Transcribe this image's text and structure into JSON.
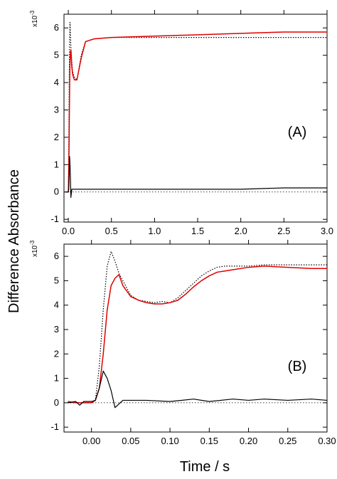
{
  "figure": {
    "ylabel": "Difference Absorbance",
    "xlabel": "Time / s"
  },
  "chart_data": [
    {
      "type": "line",
      "panel_label": "(A)",
      "y_multiplier": "x10",
      "y_exponent": "-3",
      "xlim": [
        -0.05,
        3.0
      ],
      "ylim": [
        -1.1,
        6.5
      ],
      "x_ticks": [
        0.0,
        0.5,
        1.0,
        1.5,
        2.0,
        2.5,
        3.0
      ],
      "x_tick_labels": [
        "0.0",
        "0.5",
        "1.0",
        "1.5",
        "2.0",
        "2.5",
        "3.0"
      ],
      "y_ticks": [
        -1,
        0,
        1,
        2,
        3,
        4,
        5,
        6
      ],
      "y_tick_labels": [
        "-1",
        "0",
        "1",
        "2",
        "3",
        "4",
        "5",
        "6"
      ],
      "grid": false,
      "series": [
        {
          "style": "dotted",
          "color": "#000000",
          "x": [
            -0.03,
            0.0,
            0.005,
            0.01,
            0.015,
            0.02,
            0.025,
            0.03,
            0.04,
            0.05,
            0.07,
            0.1,
            0.15,
            0.2,
            0.3,
            0.5,
            1.0,
            1.5,
            2.0,
            2.5,
            3.0
          ],
          "y": [
            0.0,
            0.0,
            1.5,
            3.8,
            5.6,
            6.2,
            5.8,
            5.3,
            4.8,
            4.4,
            4.2,
            4.1,
            5.0,
            5.5,
            5.6,
            5.65,
            5.65,
            5.65,
            5.65,
            5.65,
            5.65
          ]
        },
        {
          "style": "solid",
          "color": "#e00000",
          "x": [
            -0.03,
            0.0,
            0.005,
            0.01,
            0.015,
            0.02,
            0.025,
            0.03,
            0.04,
            0.05,
            0.07,
            0.1,
            0.15,
            0.2,
            0.3,
            0.5,
            1.0,
            1.5,
            2.0,
            2.5,
            3.0
          ],
          "y": [
            0.0,
            0.0,
            0.6,
            2.0,
            3.8,
            4.8,
            5.1,
            5.2,
            4.6,
            4.3,
            4.1,
            4.1,
            4.9,
            5.5,
            5.6,
            5.65,
            5.7,
            5.75,
            5.8,
            5.85,
            5.85
          ]
        },
        {
          "style": "solid",
          "color": "#000000",
          "x": [
            -0.03,
            0.0,
            0.005,
            0.01,
            0.015,
            0.02,
            0.025,
            0.03,
            0.04,
            0.05,
            0.1,
            0.5,
            1.0,
            1.5,
            2.0,
            2.5,
            3.0
          ],
          "y": [
            0.0,
            0.0,
            0.1,
            0.6,
            1.3,
            1.0,
            0.5,
            -0.2,
            0.1,
            0.1,
            0.1,
            0.1,
            0.1,
            0.1,
            0.1,
            0.15,
            0.15
          ]
        }
      ]
    },
    {
      "type": "line",
      "panel_label": "(B)",
      "y_multiplier": "x10",
      "y_exponent": "-3",
      "xlim": [
        -0.035,
        0.3
      ],
      "ylim": [
        -1.2,
        6.5
      ],
      "x_ticks": [
        0.0,
        0.05,
        0.1,
        0.15,
        0.2,
        0.25,
        0.3
      ],
      "x_tick_labels": [
        "0.00",
        "0.05",
        "0.10",
        "0.15",
        "0.20",
        "0.25",
        "0.30"
      ],
      "y_ticks": [
        -1,
        0,
        1,
        2,
        3,
        4,
        5,
        6
      ],
      "y_tick_labels": [
        "-1",
        "0",
        "1",
        "2",
        "3",
        "4",
        "5",
        "6"
      ],
      "grid": false,
      "series": [
        {
          "style": "dotted",
          "color": "#000000",
          "x": [
            -0.03,
            -0.02,
            -0.01,
            0.0,
            0.005,
            0.01,
            0.015,
            0.02,
            0.025,
            0.03,
            0.035,
            0.04,
            0.05,
            0.06,
            0.07,
            0.08,
            0.09,
            0.1,
            0.11,
            0.12,
            0.13,
            0.14,
            0.15,
            0.16,
            0.17,
            0.18,
            0.2,
            0.22,
            0.25,
            0.28,
            0.3
          ],
          "y": [
            0.0,
            0.0,
            0.0,
            0.0,
            0.1,
            1.5,
            3.8,
            5.6,
            6.2,
            5.8,
            5.3,
            5.0,
            4.4,
            4.2,
            4.15,
            4.1,
            4.15,
            4.1,
            4.3,
            4.6,
            4.9,
            5.2,
            5.4,
            5.55,
            5.6,
            5.6,
            5.6,
            5.65,
            5.65,
            5.65,
            5.65
          ]
        },
        {
          "style": "solid",
          "color": "#e00000",
          "x": [
            -0.03,
            -0.02,
            -0.01,
            0.0,
            0.005,
            0.01,
            0.015,
            0.02,
            0.025,
            0.03,
            0.035,
            0.04,
            0.05,
            0.06,
            0.07,
            0.08,
            0.09,
            0.1,
            0.11,
            0.12,
            0.13,
            0.14,
            0.15,
            0.16,
            0.17,
            0.18,
            0.2,
            0.22,
            0.25,
            0.28,
            0.3
          ],
          "y": [
            0.05,
            0.0,
            0.0,
            0.0,
            0.1,
            0.6,
            2.0,
            3.8,
            4.8,
            5.1,
            5.25,
            4.8,
            4.35,
            4.2,
            4.1,
            4.05,
            4.05,
            4.1,
            4.2,
            4.45,
            4.75,
            5.0,
            5.2,
            5.35,
            5.4,
            5.45,
            5.55,
            5.6,
            5.55,
            5.5,
            5.5
          ]
        },
        {
          "style": "solid",
          "color": "#000000",
          "x": [
            -0.03,
            -0.02,
            -0.015,
            -0.01,
            0.0,
            0.005,
            0.01,
            0.015,
            0.02,
            0.025,
            0.03,
            0.04,
            0.05,
            0.07,
            0.1,
            0.13,
            0.15,
            0.18,
            0.2,
            0.22,
            0.25,
            0.28,
            0.3
          ],
          "y": [
            0.0,
            0.05,
            -0.1,
            0.05,
            0.05,
            0.1,
            0.6,
            1.3,
            1.0,
            0.5,
            -0.2,
            0.1,
            0.1,
            0.1,
            0.05,
            0.15,
            0.05,
            0.15,
            0.1,
            0.15,
            0.1,
            0.15,
            0.1
          ]
        }
      ]
    }
  ]
}
